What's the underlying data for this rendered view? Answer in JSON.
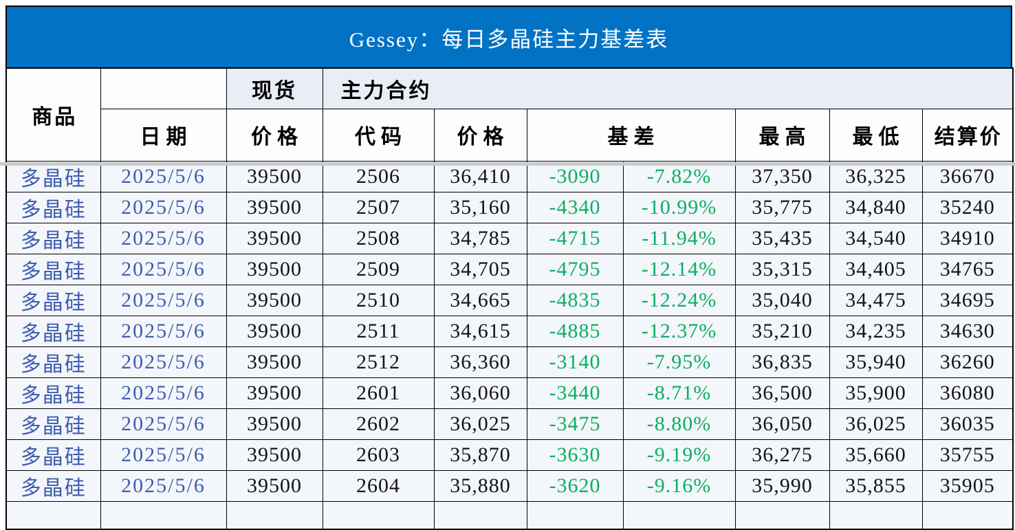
{
  "title": "Gessey：每日多晶硅主力基差表",
  "table": {
    "header": {
      "commodity": "商品",
      "date": "日期",
      "spot_group": "现货",
      "spot_price_label": "价格",
      "main_contract_group": "主力合约",
      "code": "代码",
      "price": "价格",
      "basis": "基差",
      "high": "最高",
      "low": "最低",
      "settlement": "结算价"
    },
    "rows": [
      {
        "commodity": "多晶硅",
        "date": "2025/5/6",
        "spot_price": "39500",
        "code": "2506",
        "price": "36,410",
        "basis": "-3090",
        "basis_pct": "-7.82%",
        "high": "37,350",
        "low": "36,325",
        "settlement": "36670"
      },
      {
        "commodity": "多晶硅",
        "date": "2025/5/6",
        "spot_price": "39500",
        "code": "2507",
        "price": "35,160",
        "basis": "-4340",
        "basis_pct": "-10.99%",
        "high": "35,775",
        "low": "34,840",
        "settlement": "35240"
      },
      {
        "commodity": "多晶硅",
        "date": "2025/5/6",
        "spot_price": "39500",
        "code": "2508",
        "price": "34,785",
        "basis": "-4715",
        "basis_pct": "-11.94%",
        "high": "35,435",
        "low": "34,540",
        "settlement": "34910"
      },
      {
        "commodity": "多晶硅",
        "date": "2025/5/6",
        "spot_price": "39500",
        "code": "2509",
        "price": "34,705",
        "basis": "-4795",
        "basis_pct": "-12.14%",
        "high": "35,315",
        "low": "34,405",
        "settlement": "34765"
      },
      {
        "commodity": "多晶硅",
        "date": "2025/5/6",
        "spot_price": "39500",
        "code": "2510",
        "price": "34,665",
        "basis": "-4835",
        "basis_pct": "-12.24%",
        "high": "35,040",
        "low": "34,475",
        "settlement": "34695"
      },
      {
        "commodity": "多晶硅",
        "date": "2025/5/6",
        "spot_price": "39500",
        "code": "2511",
        "price": "34,615",
        "basis": "-4885",
        "basis_pct": "-12.37%",
        "high": "35,210",
        "low": "34,235",
        "settlement": "34630"
      },
      {
        "commodity": "多晶硅",
        "date": "2025/5/6",
        "spot_price": "39500",
        "code": "2512",
        "price": "36,360",
        "basis": "-3140",
        "basis_pct": "-7.95%",
        "high": "36,835",
        "low": "35,940",
        "settlement": "36260"
      },
      {
        "commodity": "多晶硅",
        "date": "2025/5/6",
        "spot_price": "39500",
        "code": "2601",
        "price": "36,060",
        "basis": "-3440",
        "basis_pct": "-8.71%",
        "high": "36,500",
        "low": "35,900",
        "settlement": "36080"
      },
      {
        "commodity": "多晶硅",
        "date": "2025/5/6",
        "spot_price": "39500",
        "code": "2602",
        "price": "36,025",
        "basis": "-3475",
        "basis_pct": "-8.80%",
        "high": "36,050",
        "low": "36,025",
        "settlement": "36035"
      },
      {
        "commodity": "多晶硅",
        "date": "2025/5/6",
        "spot_price": "39500",
        "code": "2603",
        "price": "35,870",
        "basis": "-3630",
        "basis_pct": "-9.19%",
        "high": "36,275",
        "low": "35,660",
        "settlement": "35755"
      },
      {
        "commodity": "多晶硅",
        "date": "2025/5/6",
        "spot_price": "39500",
        "code": "2604",
        "price": "35,880",
        "basis": "-3620",
        "basis_pct": "-9.16%",
        "high": "35,990",
        "low": "35,855",
        "settlement": "35905"
      }
    ]
  },
  "chart_data": {
    "type": "table",
    "title": "Gessey：每日多晶硅主力基差表",
    "columns": [
      "商品",
      "日期",
      "现货价格",
      "主力合约代码",
      "主力合约价格",
      "基差",
      "基差百分比",
      "最高",
      "最低",
      "结算价"
    ],
    "rows": [
      [
        "多晶硅",
        "2025/5/6",
        39500,
        "2506",
        36410,
        -3090,
        -7.82,
        37350,
        36325,
        36670
      ],
      [
        "多晶硅",
        "2025/5/6",
        39500,
        "2507",
        35160,
        -4340,
        -10.99,
        35775,
        34840,
        35240
      ],
      [
        "多晶硅",
        "2025/5/6",
        39500,
        "2508",
        34785,
        -4715,
        -11.94,
        35435,
        34540,
        34910
      ],
      [
        "多晶硅",
        "2025/5/6",
        39500,
        "2509",
        34705,
        -4795,
        -12.14,
        35315,
        34405,
        34765
      ],
      [
        "多晶硅",
        "2025/5/6",
        39500,
        "2510",
        34665,
        -4835,
        -12.24,
        35040,
        34475,
        34695
      ],
      [
        "多晶硅",
        "2025/5/6",
        39500,
        "2511",
        34615,
        -4885,
        -12.37,
        35210,
        34235,
        34630
      ],
      [
        "多晶硅",
        "2025/5/6",
        39500,
        "2512",
        36360,
        -3140,
        -7.95,
        36835,
        35940,
        36260
      ],
      [
        "多晶硅",
        "2025/5/6",
        39500,
        "2601",
        36060,
        -3440,
        -8.71,
        36500,
        35900,
        36080
      ],
      [
        "多晶硅",
        "2025/5/6",
        39500,
        "2602",
        36025,
        -3475,
        -8.8,
        36050,
        36025,
        36035
      ],
      [
        "多晶硅",
        "2025/5/6",
        39500,
        "2603",
        35870,
        -3630,
        -9.19,
        36275,
        35660,
        35755
      ],
      [
        "多晶硅",
        "2025/5/6",
        39500,
        "2604",
        35880,
        -3620,
        -9.16,
        35990,
        35855,
        35905
      ]
    ]
  },
  "colors": {
    "title_bar_bg": "#0272C4",
    "title_text": "#FFFFFF",
    "negative_green": "#0BAF60",
    "commodity_blue": "#3F5CAE",
    "header_tint": "#E9EDF6",
    "header_white": "#FBFDFF",
    "row_tint": "#F3F6FA",
    "freeze_line": "#CBCBCB",
    "border_color": "#000000"
  }
}
